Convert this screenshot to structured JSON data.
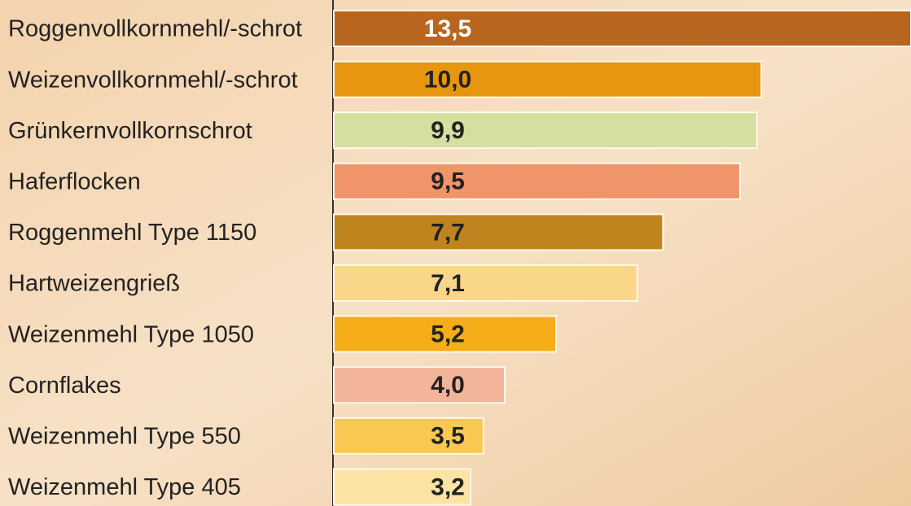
{
  "chart_data": {
    "type": "hbar",
    "categories": [
      "Roggenvollkornmehl/-schrot",
      "Weizenvollkornmehl/-schrot",
      "Grünkernvollkornschrot",
      "Haferflocken",
      "Roggenmehl Type 1150",
      "Hartweizengrieß",
      "Weizenmehl Type 1050",
      "Cornflakes",
      "Weizenmehl Type 550",
      "Weizenmehl Type 405"
    ],
    "values": [
      13.5,
      10.0,
      9.9,
      9.5,
      7.7,
      7.1,
      5.2,
      4.0,
      3.5,
      3.2
    ],
    "value_labels": [
      "13,5",
      "10,0",
      "9,9",
      "9,5",
      "7,7",
      "7,1",
      "5,2",
      "4,0",
      "3,5",
      "3,2"
    ],
    "colors": [
      "#b8651f",
      "#e8960f",
      "#d6dfa0",
      "#f0956a",
      "#c0841e",
      "#f9d68a",
      "#f5ad18",
      "#f3b59a",
      "#f9c850",
      "#fde4a4"
    ]
  }
}
